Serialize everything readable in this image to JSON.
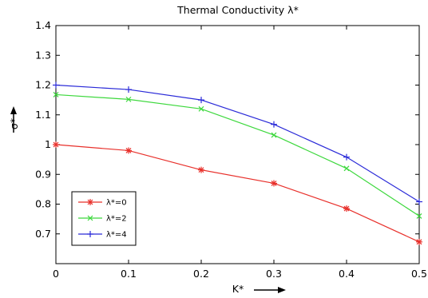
{
  "chart_data": {
    "type": "line",
    "title": "Thermal Conductivity λ*",
    "xlabel": "K*",
    "ylabel": "σ*",
    "x": [
      0,
      0.1,
      0.2,
      0.3,
      0.4,
      0.5
    ],
    "xlim": [
      0,
      0.5
    ],
    "ylim": [
      0.6,
      1.4
    ],
    "xticks": [
      "0",
      "0.1",
      "0.2",
      "0.3",
      "0.4",
      "0.5"
    ],
    "yticks": [
      "0.7",
      "0.8",
      "0.9",
      "1",
      "1.1",
      "1.2",
      "1.3",
      "1.4"
    ],
    "grid": false,
    "legend_position": "bottom-left",
    "series": [
      {
        "name": "λ*=0",
        "color": "#e8302b",
        "marker": "star",
        "values": [
          1.0,
          0.98,
          0.915,
          0.87,
          0.785,
          0.673
        ]
      },
      {
        "name": "λ*=2",
        "color": "#3dd83d",
        "marker": "x",
        "values": [
          1.168,
          1.152,
          1.12,
          1.032,
          0.92,
          0.76
        ]
      },
      {
        "name": "λ*=4",
        "color": "#2a2ad8",
        "marker": "plus",
        "values": [
          1.2,
          1.185,
          1.15,
          1.068,
          0.958,
          0.808
        ]
      }
    ]
  }
}
